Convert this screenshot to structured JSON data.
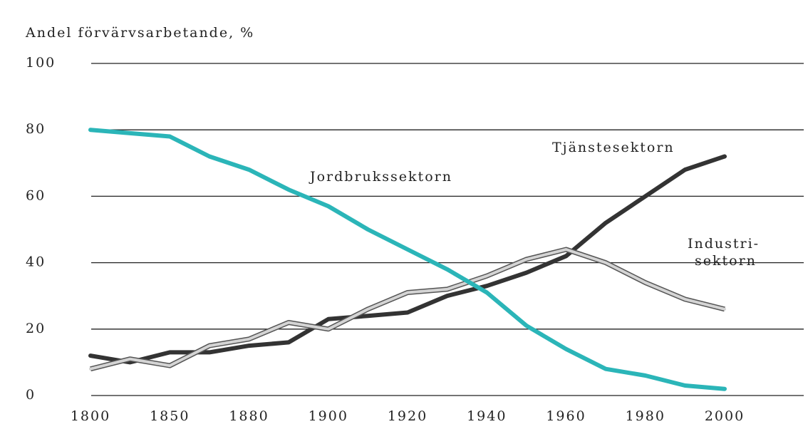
{
  "chart_data": {
    "type": "line",
    "y_axis_label": "Andel förvärvsarbetande, %",
    "categories": [
      "1800",
      null,
      "1850",
      null,
      "1880",
      null,
      "1900",
      null,
      "1920",
      null,
      "1940",
      null,
      "1960",
      null,
      "1980",
      null,
      "2000"
    ],
    "ylim": [
      0,
      100
    ],
    "yticks": [
      0,
      20,
      40,
      60,
      80,
      100
    ],
    "grid": true,
    "series": [
      {
        "name": "Jordbrukssektorn",
        "color": "#2bb5b8",
        "values": [
          80,
          79,
          78,
          72,
          68,
          62,
          57,
          50,
          44,
          38,
          31,
          21,
          14,
          8,
          6,
          3,
          2
        ]
      },
      {
        "name_lines": [
          "Industri-",
          "sektorn"
        ],
        "color": "#d4d4d4",
        "values": [
          8,
          11,
          9,
          15,
          17,
          22,
          20,
          26,
          31,
          32,
          36,
          41,
          44,
          40,
          34,
          29,
          26
        ]
      },
      {
        "name": "Tjänstesektorn",
        "color": "#333333",
        "values": [
          12,
          10,
          13,
          13,
          15,
          16,
          23,
          24,
          25,
          30,
          33,
          37,
          42,
          52,
          60,
          68,
          72
        ]
      }
    ]
  }
}
